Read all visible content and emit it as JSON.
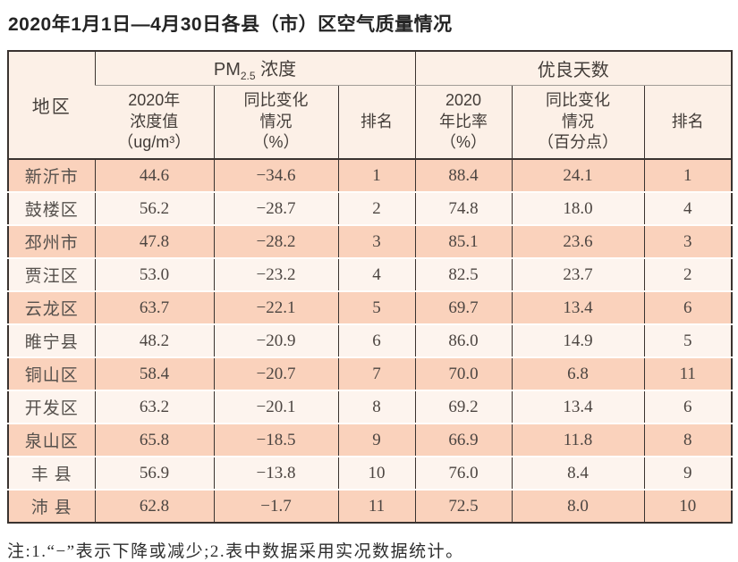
{
  "title": "2020年1月1日—4月30日各县（市）区空气质量情况",
  "note": "注:1.“−”表示下降或减少;2.表中数据采用实况数据统计。",
  "colors": {
    "row_dark": "#fad2bc",
    "row_light": "#fdf4ee",
    "header_bg": "#fcf0e7",
    "border_dark": "#3a3330",
    "group_divider_gray": "#a19c96"
  },
  "table": {
    "region_header": "地区",
    "pm_group": {
      "main": "PM",
      "sub": "2.5",
      "rest": " 浓度"
    },
    "good_group": "优良天数",
    "sub_headers": [
      "2020年\n浓度值\n（ug/m³）",
      "同比变化\n情况\n（%）",
      "排名",
      "2020\n年比率\n（%）",
      "同比变化\n情况\n（百分点）",
      "排名"
    ],
    "rows": [
      {
        "cells": [
          "新沂市",
          "44.6",
          "−34.6",
          "1",
          "88.4",
          "24.1",
          "1"
        ]
      },
      {
        "cells": [
          "鼓楼区",
          "56.2",
          "−28.7",
          "2",
          "74.8",
          "18.0",
          "4"
        ]
      },
      {
        "cells": [
          "邳州市",
          "47.8",
          "−28.2",
          "3",
          "85.1",
          "23.6",
          "3"
        ]
      },
      {
        "cells": [
          "贾汪区",
          "53.0",
          "−23.2",
          "4",
          "82.5",
          "23.7",
          "2"
        ]
      },
      {
        "cells": [
          "云龙区",
          "63.7",
          "−22.1",
          "5",
          "69.7",
          "13.4",
          "6"
        ]
      },
      {
        "cells": [
          "睢宁县",
          "48.2",
          "−20.9",
          "6",
          "86.0",
          "14.9",
          "5"
        ]
      },
      {
        "cells": [
          "铜山区",
          "58.4",
          "−20.7",
          "7",
          "70.0",
          "6.8",
          "11"
        ]
      },
      {
        "cells": [
          "开发区",
          "63.2",
          "−20.1",
          "8",
          "69.2",
          "13.4",
          "6"
        ]
      },
      {
        "cells": [
          "泉山区",
          "65.8",
          "−18.5",
          "9",
          "66.9",
          "11.8",
          "8"
        ]
      },
      {
        "cells": [
          "丰 县",
          "56.9",
          "−13.8",
          "10",
          "76.0",
          "8.4",
          "9"
        ]
      },
      {
        "cells": [
          "沛 县",
          "62.8",
          "−1.7",
          "11",
          "72.5",
          "8.0",
          "10"
        ]
      }
    ]
  }
}
